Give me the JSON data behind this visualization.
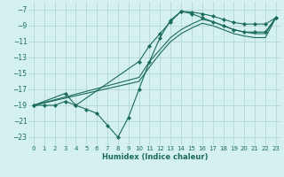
{
  "xlabel": "Humidex (Indice chaleur)",
  "bg_color": "#d4f0f0",
  "grid_color": "#b8dada",
  "line_color": "#1a6b5a",
  "xlim": [
    -0.5,
    23.5
  ],
  "ylim": [
    -24.0,
    -6.0
  ],
  "xticks": [
    0,
    1,
    2,
    3,
    4,
    5,
    6,
    7,
    8,
    9,
    10,
    11,
    12,
    13,
    14,
    15,
    16,
    17,
    18,
    19,
    20,
    21,
    22,
    23
  ],
  "yticks": [
    -7,
    -9,
    -11,
    -13,
    -15,
    -17,
    -19,
    -21,
    -23
  ],
  "series": [
    {
      "x": [
        0,
        1,
        2,
        3,
        4,
        5,
        6,
        7,
        8,
        9,
        10,
        11,
        12,
        13,
        14,
        15,
        16,
        17,
        18,
        19,
        20,
        21,
        22,
        23
      ],
      "y": [
        -19,
        -19,
        -19,
        -18.5,
        -19,
        -19.5,
        -20,
        -21.5,
        -23,
        -20.5,
        -17,
        -13.5,
        -10.5,
        -8.3,
        -7.2,
        -7.5,
        -8.0,
        -8.5,
        -9.0,
        -9.5,
        -9.8,
        -9.8,
        -9.8,
        -8.0
      ],
      "marker": true
    },
    {
      "x": [
        0,
        3,
        4,
        10,
        11,
        12,
        13,
        14,
        15,
        16,
        17,
        18,
        19,
        20,
        21,
        22,
        23
      ],
      "y": [
        -19,
        -17.5,
        -19,
        -13.5,
        -11.5,
        -10,
        -8.5,
        -7.2,
        -7.3,
        -7.5,
        -7.8,
        -8.2,
        -8.6,
        -8.8,
        -8.8,
        -8.8,
        -8.0
      ],
      "marker": true
    },
    {
      "x": [
        0,
        10,
        11,
        12,
        13,
        14,
        15,
        16,
        17,
        18,
        19,
        20,
        21,
        22,
        23
      ],
      "y": [
        -19,
        -15.5,
        -13.5,
        -12,
        -10.5,
        -9.5,
        -8.8,
        -8.2,
        -8.5,
        -9.0,
        -9.5,
        -9.8,
        -10.0,
        -10.0,
        -8.0
      ],
      "marker": false
    },
    {
      "x": [
        0,
        10,
        11,
        12,
        13,
        14,
        15,
        16,
        17,
        18,
        19,
        20,
        21,
        22,
        23
      ],
      "y": [
        -19,
        -16.0,
        -14.2,
        -12.5,
        -11.0,
        -10.0,
        -9.3,
        -8.7,
        -9.0,
        -9.5,
        -10.0,
        -10.3,
        -10.5,
        -10.5,
        -8.0
      ],
      "marker": false
    }
  ]
}
